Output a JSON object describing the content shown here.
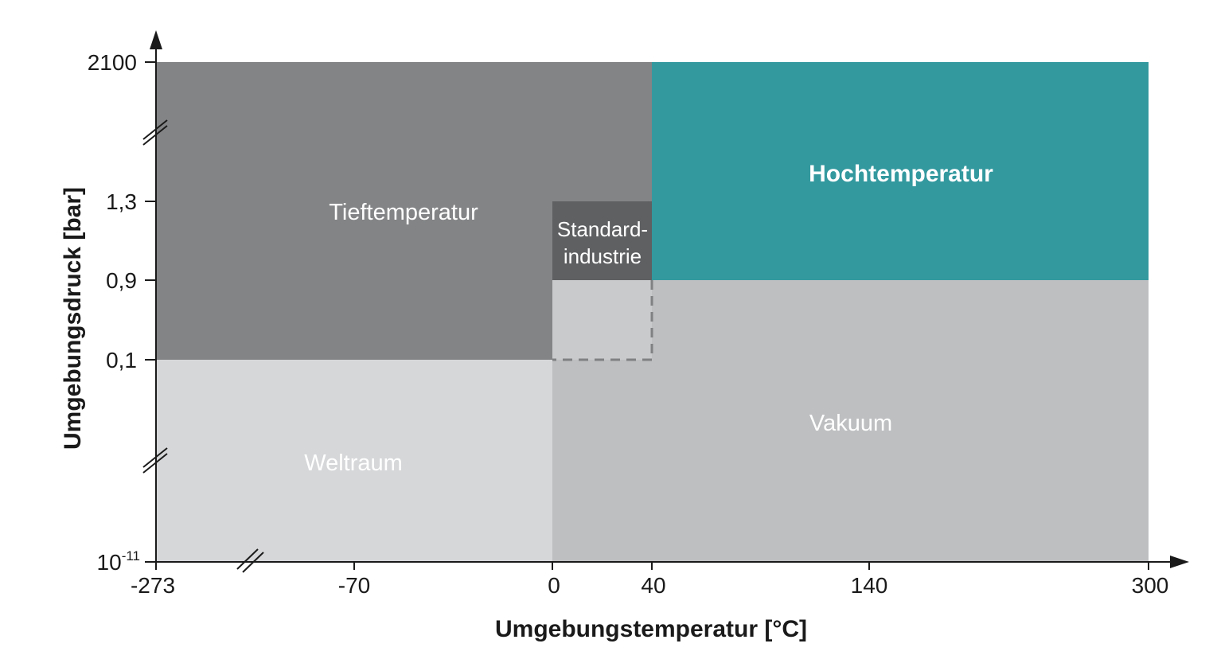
{
  "axes": {
    "x_label": "Umgebungstemperatur [°C]",
    "y_label": "Umgebungsdruck [bar]",
    "x_ticks": [
      "-273",
      "-70",
      "0",
      "40",
      "140",
      "300"
    ],
    "y_ticks": [
      {
        "base": "2100",
        "exp": ""
      },
      {
        "base": "1,3",
        "exp": ""
      },
      {
        "base": "0,9",
        "exp": ""
      },
      {
        "base": "0,1",
        "exp": ""
      },
      {
        "base": "10",
        "exp": "-11"
      }
    ]
  },
  "regions": [
    {
      "id": "tieftemperatur",
      "label_lines": [
        "Tieftemperatur"
      ],
      "color": "#838486",
      "text_color": "#ffffff",
      "temp_range": [
        -273,
        40
      ],
      "pressure_range": [
        "0,1",
        "2100"
      ]
    },
    {
      "id": "hochtemperatur",
      "label_lines": [
        "Hochtemperatur"
      ],
      "color": "#33999f",
      "text_color": "#ffffff",
      "temp_range": [
        40,
        300
      ],
      "pressure_range": [
        "0,9",
        "2100"
      ]
    },
    {
      "id": "standardindustrie",
      "label_lines": [
        "Standard-",
        "industrie"
      ],
      "color": "#5f6062",
      "text_color": "#ffffff",
      "temp_range": [
        0,
        40
      ],
      "pressure_range": [
        "0,9",
        "1,3"
      ]
    },
    {
      "id": "weltraum",
      "label_lines": [
        "Weltraum"
      ],
      "color": "#d6d7d9",
      "text_color": "#ffffff",
      "temp_range": [
        -273,
        0
      ],
      "pressure_range": [
        "10^-11",
        "0,1"
      ]
    },
    {
      "id": "vakuum",
      "label_lines": [
        "Vakuum"
      ],
      "color": "#bebfc1",
      "text_color": "#ffffff",
      "temp_range": [
        0,
        300
      ],
      "pressure_range": [
        "10^-11",
        "0,9"
      ]
    }
  ]
}
